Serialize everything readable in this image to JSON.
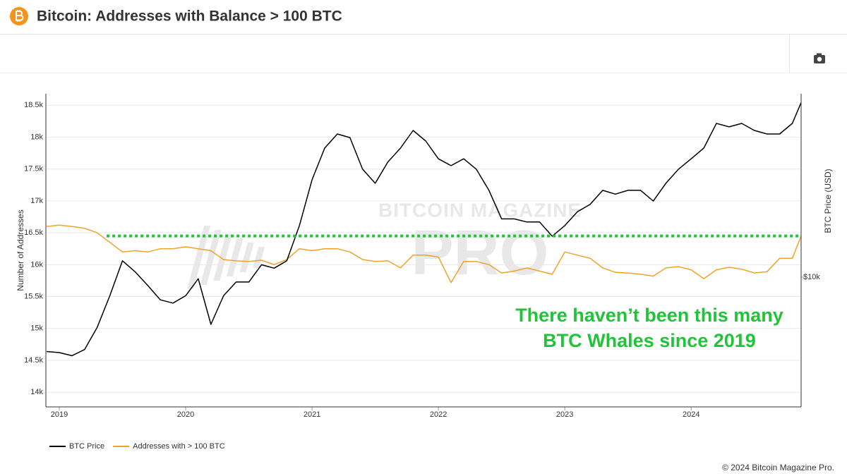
{
  "chart_data": {
    "type": "line",
    "title": "Bitcoin: Addresses with Balance > 100 BTC",
    "x": [
      2018.9,
      2019.0,
      2019.1,
      2019.2,
      2019.3,
      2019.4,
      2019.5,
      2019.6,
      2019.7,
      2019.8,
      2019.9,
      2020.0,
      2020.1,
      2020.2,
      2020.3,
      2020.4,
      2020.5,
      2020.6,
      2020.7,
      2020.8,
      2020.9,
      2021.0,
      2021.1,
      2021.2,
      2021.3,
      2021.4,
      2021.5,
      2021.6,
      2021.7,
      2021.8,
      2021.9,
      2022.0,
      2022.1,
      2022.2,
      2022.3,
      2022.4,
      2022.5,
      2022.6,
      2022.7,
      2022.8,
      2022.9,
      2023.0,
      2023.1,
      2023.2,
      2023.3,
      2023.4,
      2023.5,
      2023.6,
      2023.7,
      2023.8,
      2023.9,
      2024.0,
      2024.1,
      2024.2,
      2024.3,
      2024.4,
      2024.5,
      2024.6,
      2024.7,
      2024.8,
      2024.87
    ],
    "series": [
      {
        "name": "BTC Price",
        "color": "#000000",
        "axis": "y2",
        "values": [
          3900,
          3850,
          3700,
          4000,
          5300,
          7900,
          12300,
          10700,
          9000,
          7500,
          7200,
          7900,
          9800,
          5500,
          7900,
          9400,
          9400,
          11700,
          11200,
          12300,
          19200,
          34300,
          51200,
          61200,
          58500,
          39200,
          32800,
          42900,
          51200,
          64000,
          56000,
          44700,
          41000,
          44700,
          39200,
          30000,
          20900,
          20900,
          20100,
          20100,
          16800,
          19200,
          22900,
          25100,
          30000,
          28600,
          30000,
          30000,
          26200,
          32800,
          39200,
          44700,
          51200,
          70000,
          67000,
          70000,
          64000,
          61200,
          61200,
          70000,
          91000
        ]
      },
      {
        "name": "Addresses with > 100 BTC",
        "color": "#f0a32a",
        "values": [
          16600,
          16620,
          16600,
          16570,
          16500,
          16350,
          16200,
          16220,
          16200,
          16250,
          16250,
          16280,
          16250,
          16220,
          16080,
          16060,
          16050,
          16070,
          16000,
          16080,
          16250,
          16220,
          16250,
          16250,
          16200,
          16080,
          16050,
          16060,
          15950,
          16150,
          16150,
          16120,
          15720,
          16050,
          16050,
          16000,
          15870,
          15900,
          15950,
          15900,
          15850,
          16200,
          16150,
          16100,
          15950,
          15880,
          15870,
          15850,
          15820,
          15950,
          15970,
          15920,
          15780,
          15920,
          15960,
          15930,
          15870,
          15890,
          16100,
          16100,
          16450
        ]
      }
    ],
    "xlim": [
      2018.894,
      2024.87
    ],
    "xticks": [
      2019,
      2020,
      2021,
      2022,
      2023,
      2024
    ],
    "ylim": [
      13770,
      18680
    ],
    "yticks": [
      {
        "value": 14000,
        "label": "14k"
      },
      {
        "value": 14500,
        "label": "14.5k"
      },
      {
        "value": 15000,
        "label": "15k"
      },
      {
        "value": 15500,
        "label": "15.5k"
      },
      {
        "value": 16000,
        "label": "16k"
      },
      {
        "value": 16500,
        "label": "16.5k"
      },
      {
        "value": 17000,
        "label": "17k"
      },
      {
        "value": 17500,
        "label": "17.5k"
      },
      {
        "value": 18000,
        "label": "18k"
      },
      {
        "value": 18500,
        "label": "18.5k"
      }
    ],
    "y2lim": [
      1936,
      101800
    ],
    "y2ticks": [
      {
        "value": 10000,
        "label": "$10k"
      }
    ],
    "y2log": true,
    "ylabel": "Number of Addresses",
    "y2label": "BTC Price (USD)",
    "grid": true,
    "legend": "bottom-left",
    "reference_line": 16450,
    "reference_color": "#22c33a",
    "annotation": [
      "There haven’t been this many",
      "BTC Whales since 2019"
    ],
    "watermark": [
      "BITCOIN MAGAZINE",
      "PRO"
    ],
    "footer": "© 2024 Bitcoin Magazine Pro."
  }
}
